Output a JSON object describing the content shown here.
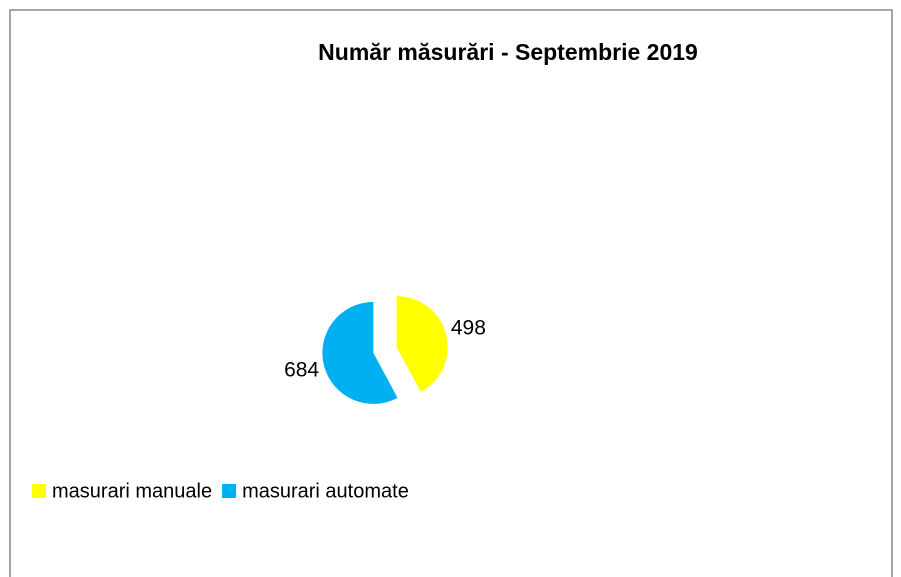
{
  "chart_data": {
    "type": "pie",
    "title": "Număr măsurări - Septembrie 2019",
    "categories": [
      "masurari manuale",
      "masurari automate"
    ],
    "values": [
      498,
      684
    ],
    "colors": [
      "#ffff00",
      "#00b0f0"
    ],
    "legend": "bottom-left"
  }
}
